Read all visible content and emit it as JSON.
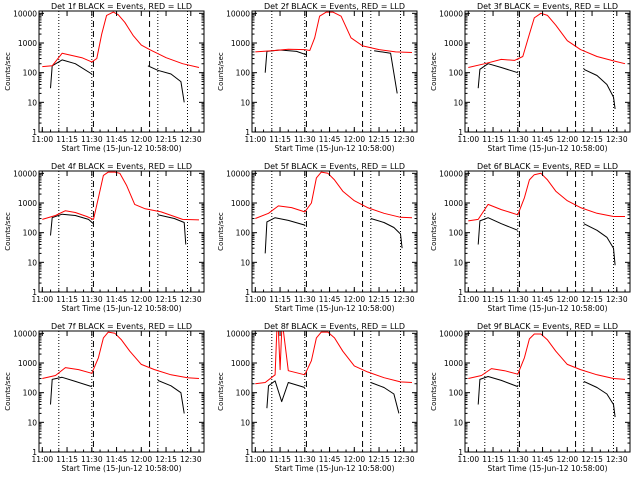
{
  "chart_data": [
    {
      "type": "line",
      "title": "Det 1f BLACK = Events, RED = LLD",
      "xlabel": "Start Time (15-Jun-12 10:58:00)",
      "ylabel": "Counts/sec",
      "x_tick_labels": [
        "11:00",
        "11:15",
        "11:30",
        "11:45",
        "12:00",
        "12:15",
        "12:30"
      ],
      "y_tick_labels": [
        "1",
        "10",
        "100",
        "1000",
        "10000"
      ],
      "yscale": "log",
      "ylim": [
        1,
        12000
      ],
      "colors": {
        "events": "#000000",
        "lld": "#ff0000"
      },
      "series": [
        {
          "key": "events",
          "x": [
            "11:05",
            "11:06",
            "11:12",
            "11:20",
            "11:30",
            "11:33",
            "11:36",
            "11:40",
            "11:45",
            "11:52",
            "12:00",
            "12:04",
            "12:10",
            "12:18",
            "12:24",
            "12:26"
          ],
          "values": [
            30,
            170,
            270,
            200,
            90,
            null,
            null,
            null,
            null,
            null,
            null,
            170,
            120,
            90,
            50,
            10
          ]
        },
        {
          "key": "lld",
          "x": [
            "11:00",
            "11:06",
            "11:12",
            "11:18",
            "11:24",
            "11:30",
            "11:33",
            "11:36",
            "11:39",
            "11:43",
            "11:46",
            "11:50",
            "11:55",
            "12:00",
            "12:05",
            "12:15",
            "12:25",
            "12:35"
          ],
          "values": [
            160,
            170,
            450,
            380,
            320,
            230,
            300,
            2000,
            8500,
            11000,
            9000,
            5000,
            1800,
            850,
            600,
            320,
            200,
            150
          ]
        }
      ],
      "annotations": [
        "dotted verticals",
        "dashed verticals"
      ]
    },
    {
      "type": "line",
      "title": "Det 2f BLACK = Events, RED = LLD",
      "xlabel": "Start Time (15-Jun-12 10:58:00)",
      "ylabel": "Counts/sec",
      "x_tick_labels": [
        "11:00",
        "11:15",
        "11:30",
        "11:45",
        "12:00",
        "12:15",
        "12:30"
      ],
      "y_tick_labels": [
        "1",
        "10",
        "100",
        "1000",
        "10000"
      ],
      "yscale": "log",
      "ylim": [
        1,
        12000
      ],
      "colors": {
        "events": "#000000",
        "lld": "#ff0000"
      },
      "series": [
        {
          "key": "events",
          "x": [
            "11:06",
            "11:07",
            "11:15",
            "11:25",
            "11:31",
            "11:33",
            "11:45",
            "12:05",
            "12:12",
            "12:22",
            "12:26"
          ],
          "values": [
            100,
            520,
            580,
            520,
            400,
            null,
            null,
            null,
            550,
            450,
            20
          ]
        },
        {
          "key": "lld",
          "x": [
            "11:00",
            "11:10",
            "11:20",
            "11:30",
            "11:33",
            "11:36",
            "11:39",
            "11:43",
            "11:47",
            "11:52",
            "11:58",
            "12:05",
            "12:15",
            "12:25",
            "12:35"
          ],
          "values": [
            500,
            550,
            620,
            600,
            560,
            1500,
            8000,
            11000,
            11000,
            8000,
            1500,
            800,
            600,
            500,
            480
          ]
        }
      ],
      "annotations": [
        "dotted verticals",
        "dashed verticals"
      ]
    },
    {
      "type": "line",
      "title": "Det 3f BLACK = Events, RED = LLD",
      "xlabel": "Start Time (15-Jun-12 10:58:00)",
      "ylabel": "Counts/sec",
      "x_tick_labels": [
        "11:00",
        "11:15",
        "11:30",
        "11:45",
        "12:00",
        "12:15",
        "12:30"
      ],
      "y_tick_labels": [
        "1",
        "10",
        "100",
        "1000",
        "10000"
      ],
      "yscale": "log",
      "ylim": [
        1,
        12000
      ],
      "colors": {
        "events": "#000000",
        "lld": "#ff0000"
      },
      "series": [
        {
          "key": "events",
          "x": [
            "11:06",
            "11:07",
            "11:12",
            "11:20",
            "11:30",
            "11:33",
            "12:04",
            "12:10",
            "12:18",
            "12:24",
            "12:28",
            "12:29"
          ],
          "values": [
            30,
            130,
            200,
            150,
            100,
            null,
            null,
            130,
            80,
            40,
            15,
            6
          ]
        },
        {
          "key": "lld",
          "x": [
            "11:00",
            "11:10",
            "11:20",
            "11:28",
            "11:33",
            "11:37",
            "11:40",
            "11:44",
            "11:48",
            "11:53",
            "12:00",
            "12:08",
            "12:18",
            "12:28",
            "12:35"
          ],
          "values": [
            150,
            200,
            280,
            260,
            350,
            2000,
            7000,
            10000,
            8500,
            4000,
            1200,
            600,
            350,
            250,
            200
          ]
        }
      ],
      "annotations": [
        "dotted verticals",
        "dashed verticals"
      ]
    },
    {
      "type": "line",
      "title": "Det 4f BLACK = Events, RED = LLD",
      "xlabel": "Start Time (15-Jun-12 10:58:00)",
      "ylabel": "Counts/sec",
      "x_tick_labels": [
        "11:00",
        "11:15",
        "11:30",
        "11:45",
        "12:00",
        "12:15",
        "12:30"
      ],
      "y_tick_labels": [
        "1",
        "10",
        "100",
        "1000",
        "10000"
      ],
      "yscale": "log",
      "ylim": [
        1,
        12000
      ],
      "colors": {
        "events": "#000000",
        "lld": "#ff0000"
      },
      "series": [
        {
          "key": "events",
          "x": [
            "11:05",
            "11:06",
            "11:12",
            "11:20",
            "11:28",
            "11:31",
            "11:33",
            "12:04",
            "12:10",
            "12:20",
            "12:26",
            "12:27"
          ],
          "values": [
            80,
            320,
            420,
            380,
            280,
            200,
            null,
            null,
            400,
            300,
            220,
            40
          ]
        },
        {
          "key": "lld",
          "x": [
            "11:00",
            "11:08",
            "11:14",
            "11:20",
            "11:27",
            "11:31",
            "11:34",
            "11:37",
            "11:40",
            "11:44",
            "11:47",
            "11:51",
            "11:56",
            "12:02",
            "12:12",
            "12:25",
            "12:35"
          ],
          "values": [
            280,
            380,
            550,
            480,
            350,
            280,
            1500,
            8500,
            11000,
            11000,
            10000,
            4000,
            900,
            650,
            500,
            280,
            270
          ]
        }
      ],
      "annotations": [
        "dotted verticals",
        "dashed verticals"
      ]
    },
    {
      "type": "line",
      "title": "Det 5f BLACK = Events, RED = LLD",
      "xlabel": "Start Time (15-Jun-12 10:58:00)",
      "ylabel": "Counts/sec",
      "x_tick_labels": [
        "11:00",
        "11:15",
        "11:30",
        "11:45",
        "12:00",
        "12:15",
        "12:30"
      ],
      "y_tick_labels": [
        "1",
        "10",
        "100",
        "1000",
        "10000"
      ],
      "yscale": "log",
      "ylim": [
        1,
        12000
      ],
      "colors": {
        "events": "#000000",
        "lld": "#ff0000"
      },
      "series": [
        {
          "key": "events",
          "x": [
            "11:06",
            "11:07",
            "11:12",
            "11:20",
            "11:30",
            "11:33",
            "12:04",
            "12:10",
            "12:18",
            "12:24",
            "12:28",
            "12:29"
          ],
          "values": [
            20,
            230,
            320,
            260,
            180,
            null,
            null,
            300,
            220,
            150,
            90,
            30
          ]
        },
        {
          "key": "lld",
          "x": [
            "11:00",
            "11:08",
            "11:14",
            "11:22",
            "11:30",
            "11:34",
            "11:37",
            "11:40",
            "11:44",
            "11:48",
            "11:53",
            "12:00",
            "12:08",
            "12:18",
            "12:28",
            "12:35"
          ],
          "values": [
            300,
            450,
            800,
            700,
            500,
            1000,
            7000,
            11000,
            10000,
            6000,
            2500,
            1200,
            700,
            450,
            330,
            320
          ]
        }
      ],
      "annotations": [
        "dotted verticals",
        "dashed verticals"
      ]
    },
    {
      "type": "line",
      "title": "Det 6f BLACK = Events, RED = LLD",
      "xlabel": "Start Time (15-Jun-12 10:58:00)",
      "ylabel": "Counts/sec",
      "x_tick_labels": [
        "11:00",
        "11:15",
        "11:30",
        "11:45",
        "12:00",
        "12:15",
        "12:30"
      ],
      "y_tick_labels": [
        "1",
        "10",
        "100",
        "1000",
        "10000"
      ],
      "yscale": "log",
      "ylim": [
        1,
        12000
      ],
      "colors": {
        "events": "#000000",
        "lld": "#ff0000"
      },
      "series": [
        {
          "key": "events",
          "x": [
            "11:06",
            "11:07",
            "11:12",
            "11:20",
            "11:30",
            "11:33",
            "12:04",
            "12:10",
            "12:18",
            "12:24",
            "12:28",
            "12:29"
          ],
          "values": [
            40,
            250,
            320,
            200,
            120,
            null,
            null,
            200,
            120,
            70,
            30,
            8
          ]
        },
        {
          "key": "lld",
          "x": [
            "11:00",
            "11:06",
            "11:12",
            "11:20",
            "11:30",
            "11:34",
            "11:37",
            "11:40",
            "11:44",
            "11:48",
            "11:53",
            "12:00",
            "12:08",
            "12:18",
            "12:28",
            "12:35"
          ],
          "values": [
            250,
            280,
            900,
            600,
            400,
            1500,
            6000,
            9000,
            10000,
            6000,
            2500,
            1200,
            700,
            450,
            350,
            350
          ]
        }
      ],
      "annotations": [
        "dotted verticals",
        "dashed verticals"
      ]
    },
    {
      "type": "line",
      "title": "Det 7f BLACK = Events, RED = LLD",
      "xlabel": "Start Time (15-Jun-12 10:58:00)",
      "ylabel": "Counts/sec",
      "x_tick_labels": [
        "11:00",
        "11:15",
        "11:30",
        "11:45",
        "12:00",
        "12:15",
        "12:30"
      ],
      "y_tick_labels": [
        "1",
        "10",
        "100",
        "1000",
        "10000"
      ],
      "yscale": "log",
      "ylim": [
        1,
        12000
      ],
      "colors": {
        "events": "#000000",
        "lld": "#ff0000"
      },
      "series": [
        {
          "key": "events",
          "x": [
            "11:05",
            "11:06",
            "11:12",
            "11:20",
            "11:30",
            "11:33",
            "12:04",
            "12:10",
            "12:18",
            "12:24",
            "12:26"
          ],
          "values": [
            40,
            280,
            330,
            240,
            160,
            null,
            null,
            260,
            170,
            100,
            20
          ]
        },
        {
          "key": "lld",
          "x": [
            "11:00",
            "11:08",
            "11:14",
            "11:22",
            "11:30",
            "11:34",
            "11:37",
            "11:40",
            "11:44",
            "11:48",
            "11:53",
            "12:00",
            "12:08",
            "12:18",
            "12:28",
            "12:35"
          ],
          "values": [
            300,
            380,
            700,
            600,
            450,
            1500,
            7000,
            11000,
            10000,
            6000,
            2500,
            900,
            600,
            400,
            320,
            300
          ]
        }
      ],
      "annotations": [
        "dotted verticals",
        "dashed verticals"
      ]
    },
    {
      "type": "line",
      "title": "Det 8f BLACK = Events, RED = LLD",
      "xlabel": "Start Time (15-Jun-12 10:58:00)",
      "ylabel": "Counts/sec",
      "x_tick_labels": [
        "11:00",
        "11:15",
        "11:30",
        "11:45",
        "12:00",
        "12:15",
        "12:30"
      ],
      "y_tick_labels": [
        "1",
        "10",
        "100",
        "1000",
        "10000"
      ],
      "yscale": "log",
      "ylim": [
        1,
        12000
      ],
      "colors": {
        "events": "#000000",
        "lld": "#ff0000"
      },
      "series": [
        {
          "key": "events",
          "x": [
            "11:07",
            "11:08",
            "11:12",
            "11:16",
            "11:20",
            "11:30",
            "11:33",
            "12:04",
            "12:10",
            "12:18",
            "12:24",
            "12:27"
          ],
          "values": [
            30,
            170,
            250,
            50,
            220,
            150,
            null,
            null,
            220,
            150,
            90,
            20
          ]
        },
        {
          "key": "lld",
          "x": [
            "11:00",
            "11:06",
            "11:12",
            "11:13",
            "11:14",
            "11:15",
            "11:16",
            "11:17",
            "11:20",
            "11:30",
            "11:34",
            "11:37",
            "11:40",
            "11:44",
            "11:48",
            "11:53",
            "12:00",
            "12:08",
            "12:18",
            "12:28",
            "12:35"
          ],
          "values": [
            200,
            220,
            400,
            12000,
            12000,
            600,
            12000,
            12000,
            550,
            400,
            1200,
            7000,
            11000,
            11000,
            7000,
            2500,
            800,
            500,
            320,
            230,
            220
          ]
        }
      ],
      "annotations": [
        "dotted verticals",
        "dashed verticals"
      ]
    },
    {
      "type": "line",
      "title": "Det 9f BLACK = Events, RED = LLD",
      "xlabel": "Start Time (15-Jun-12 10:58:00)",
      "ylabel": "Counts/sec",
      "x_tick_labels": [
        "11:00",
        "11:15",
        "11:30",
        "11:45",
        "12:00",
        "12:15",
        "12:30"
      ],
      "y_tick_labels": [
        "1",
        "10",
        "100",
        "1000",
        "10000"
      ],
      "yscale": "log",
      "ylim": [
        1,
        12000
      ],
      "colors": {
        "events": "#000000",
        "lld": "#ff0000"
      },
      "series": [
        {
          "key": "events",
          "x": [
            "11:06",
            "11:07",
            "11:12",
            "11:20",
            "11:30",
            "11:33",
            "12:04",
            "12:10",
            "12:18",
            "12:24",
            "12:28",
            "12:29"
          ],
          "values": [
            40,
            280,
            350,
            260,
            160,
            null,
            null,
            240,
            150,
            90,
            40,
            15
          ]
        },
        {
          "key": "lld",
          "x": [
            "11:00",
            "11:08",
            "11:14",
            "11:22",
            "11:30",
            "11:34",
            "11:37",
            "11:40",
            "11:44",
            "11:48",
            "11:53",
            "12:00",
            "12:08",
            "12:18",
            "12:28",
            "12:35"
          ],
          "values": [
            300,
            380,
            650,
            550,
            420,
            1500,
            6500,
            9500,
            9500,
            6000,
            2500,
            900,
            600,
            400,
            300,
            280
          ]
        }
      ],
      "annotations": [
        "dotted verticals",
        "dashed verticals"
      ]
    }
  ]
}
